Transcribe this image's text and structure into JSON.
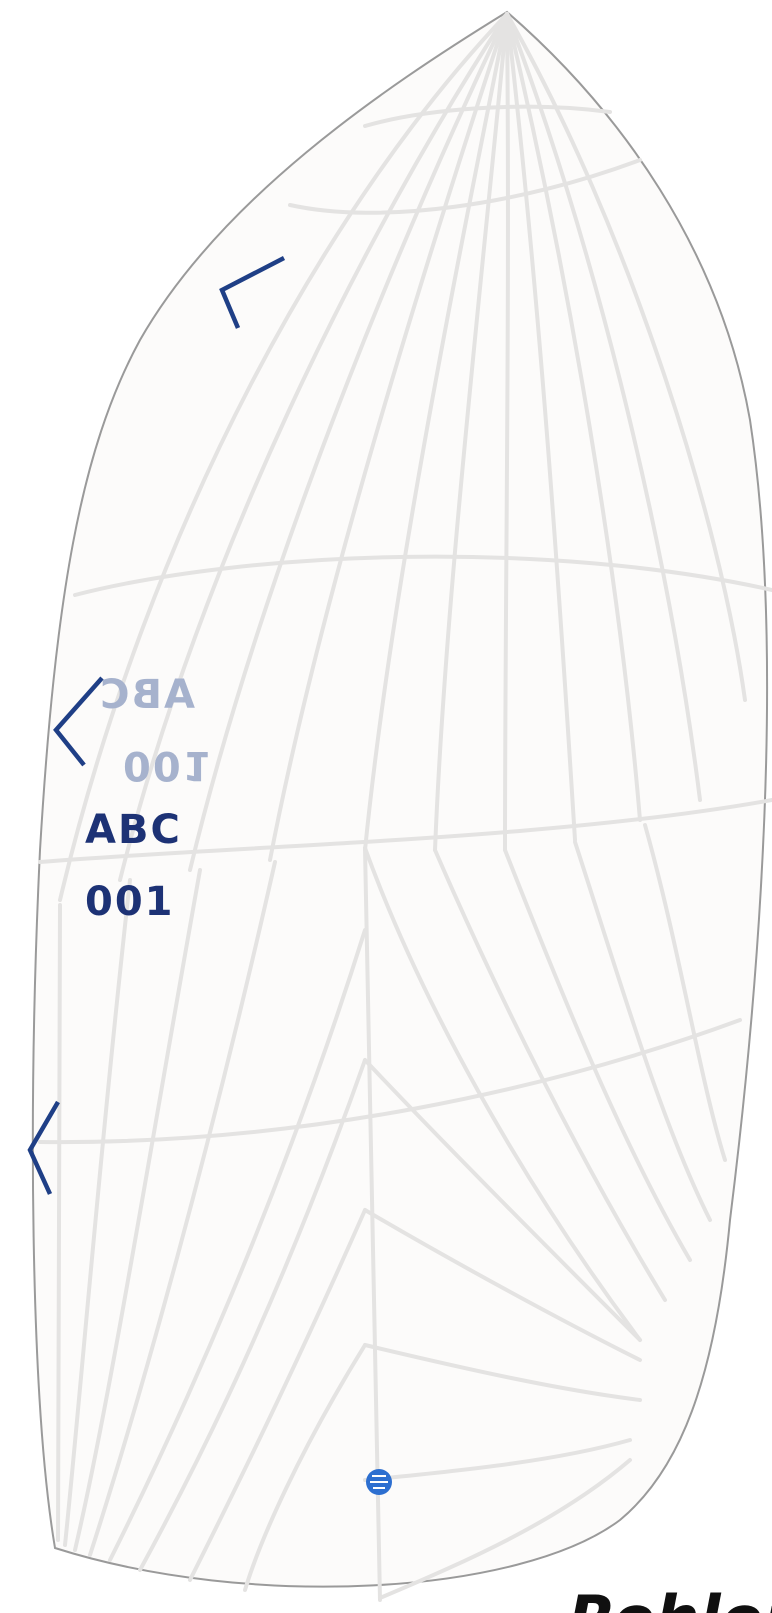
{
  "sail": {
    "sail_number_front": {
      "letters": "ABC",
      "number": "001"
    },
    "sail_number_back": {
      "letters": "ABC",
      "number": "001"
    },
    "brand_partial_text": "Rohlor",
    "logo_icon": "north-sails-logo-icon",
    "colors": {
      "sail_cloth": "#fcfbfa",
      "seam": "#e4e3e2",
      "outline": "#9a9a9a",
      "telltale": "#1f3f86",
      "number_front": "#1d3275",
      "number_back": "#a6b2cd",
      "logo": "#2d6fd0"
    }
  }
}
